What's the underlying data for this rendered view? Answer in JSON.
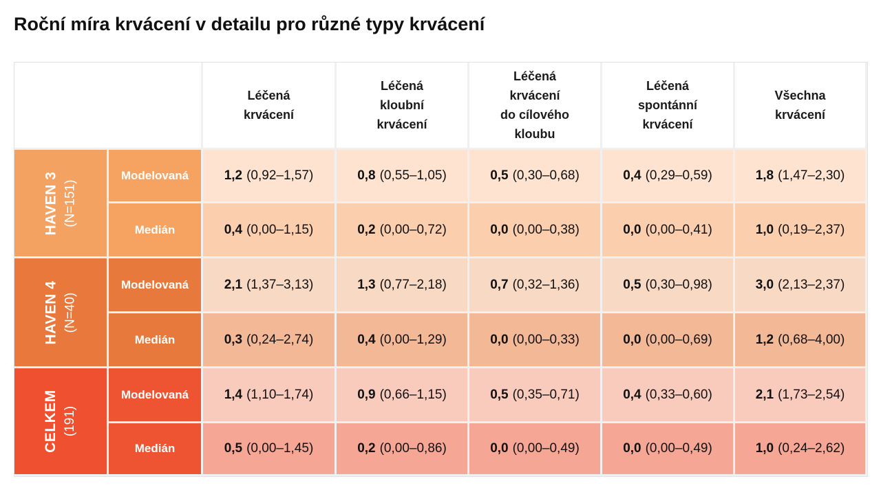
{
  "title": "Roční míra krvácení v detailu pro různé typy krvácení",
  "chart_data": {
    "type": "table",
    "columns": [
      [
        "Léčená",
        "krvácení"
      ],
      [
        "Léčená",
        "kloubní",
        "krvácení"
      ],
      [
        "Léčená",
        "krvácení",
        "do cílového",
        "kloubu"
      ],
      [
        "Léčená",
        "spontánní",
        "krvácení"
      ],
      [
        "Všechna",
        "krvácení"
      ]
    ],
    "groups": [
      {
        "name": "HAVEN 3",
        "n": "(N=151)",
        "color": "#f4a261",
        "label_colors": [
          "#f6a362",
          "#f6a362"
        ],
        "row_bg": [
          "#fde3d0",
          "#fbcfae"
        ],
        "rows": [
          {
            "label": "Modelovaná",
            "cells": [
              {
                "value": "1,2",
                "ci": "(0,92–1,57)"
              },
              {
                "value": "0,8",
                "ci": "(0,55–1,05)"
              },
              {
                "value": "0,5",
                "ci": "(0,30–0,68)"
              },
              {
                "value": "0,4",
                "ci": "(0,29–0,59)"
              },
              {
                "value": "1,8",
                "ci": "(1,47–2,30)"
              }
            ]
          },
          {
            "label": "Medián",
            "cells": [
              {
                "value": "0,4",
                "ci": "(0,00–1,15)"
              },
              {
                "value": "0,2",
                "ci": "(0,00–0,72)"
              },
              {
                "value": "0,0",
                "ci": "(0,00–0,38)"
              },
              {
                "value": "0,0",
                "ci": "(0,00–0,41)"
              },
              {
                "value": "1,0",
                "ci": "(0,19–2,37)"
              }
            ]
          }
        ]
      },
      {
        "name": "HAVEN 4",
        "n": "(N=40)",
        "color": "#e8783c",
        "label_colors": [
          "#e8793c",
          "#e8793c"
        ],
        "row_bg": [
          "#f8d9c4",
          "#f3b896"
        ],
        "rows": [
          {
            "label": "Modelovaná",
            "cells": [
              {
                "value": "2,1",
                "ci": "(1,37–3,13)"
              },
              {
                "value": "1,3",
                "ci": "(0,77–2,18)"
              },
              {
                "value": "0,7",
                "ci": "(0,32–1,36)"
              },
              {
                "value": "0,5",
                "ci": "(0,30–0,98)"
              },
              {
                "value": "3,0",
                "ci": "(2,13–2,37)"
              }
            ]
          },
          {
            "label": "Medián",
            "cells": [
              {
                "value": "0,3",
                "ci": "(0,24–2,74)"
              },
              {
                "value": "0,4",
                "ci": "(0,00–1,29)"
              },
              {
                "value": "0,0",
                "ci": "(0,00–0,33)"
              },
              {
                "value": "0,0",
                "ci": "(0,00–0,69)"
              },
              {
                "value": "1,2",
                "ci": "(0,68–4,00)"
              }
            ]
          }
        ]
      },
      {
        "name": "CELKEM",
        "n": "(191)",
        "color": "#ee5030",
        "label_colors": [
          "#ee5332",
          "#ee5332"
        ],
        "row_bg": [
          "#f9cbbd",
          "#f6a694"
        ],
        "rows": [
          {
            "label": "Modelovaná",
            "cells": [
              {
                "value": "1,4",
                "ci": "(1,10–1,74)"
              },
              {
                "value": "0,9",
                "ci": "(0,66–1,15)"
              },
              {
                "value": "0,5",
                "ci": "(0,35–0,71)"
              },
              {
                "value": "0,4",
                "ci": "(0,33–0,60)"
              },
              {
                "value": "2,1",
                "ci": "(1,73–2,54)"
              }
            ]
          },
          {
            "label": "Medián",
            "cells": [
              {
                "value": "0,5",
                "ci": "(0,00–1,45)"
              },
              {
                "value": "0,2",
                "ci": "(0,00–0,86)"
              },
              {
                "value": "0,0",
                "ci": "(0,00–0,49)"
              },
              {
                "value": "0,0",
                "ci": "(0,00–0,49)"
              },
              {
                "value": "1,0",
                "ci": "(0,24–2,62)"
              }
            ]
          }
        ]
      }
    ]
  }
}
